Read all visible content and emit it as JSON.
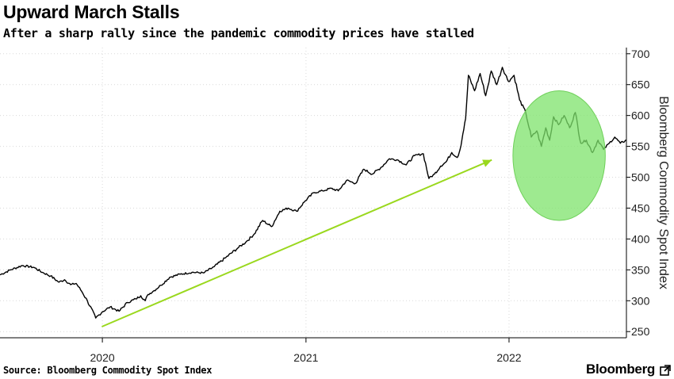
{
  "header": {
    "title": "Upward March Stalls",
    "subtitle": "After a sharp rally since the pandemic commodity prices have stalled"
  },
  "footer": {
    "source": "Source: Bloomberg Commodity Spot Index",
    "brand": "Bloomberg"
  },
  "colors": {
    "line": "#000000",
    "grid": "#d9d9d9",
    "arrow": "#9ad81e",
    "highlight_fill": "#7ee36b",
    "highlight_stroke": "#6fd05a"
  },
  "icons": {
    "brand": "external-link-icon"
  },
  "chart_data": {
    "type": "line",
    "title": "Upward March Stalls",
    "subtitle": "After a sharp rally since the pandemic commodity prices have stalled",
    "xlabel": "",
    "ylabel": "Bloomberg Commodity Spot Index",
    "x_ticks": [
      "2020",
      "2021",
      "2022"
    ],
    "y_ticks": [
      250,
      300,
      350,
      400,
      450,
      500,
      550,
      600,
      650,
      700
    ],
    "ylim": [
      240,
      710
    ],
    "xlim": [
      "2019-07-01",
      "2022-07-31"
    ],
    "grid": "dotted",
    "y_axis_side": "right",
    "series": [
      {
        "x": [
          "2019-07-01",
          "2019-07-20",
          "2019-08-10",
          "2019-08-31",
          "2019-09-15",
          "2019-09-30",
          "2019-10-15",
          "2019-10-25",
          "2019-11-05",
          "2019-11-15",
          "2019-11-25",
          "2019-12-05",
          "2019-12-20",
          "2020-01-01",
          "2020-01-15",
          "2020-01-31",
          "2020-02-15",
          "2020-03-01",
          "2020-03-10",
          "2020-03-18",
          "2020-03-23",
          "2020-04-01",
          "2020-04-15",
          "2020-05-01",
          "2020-05-20",
          "2020-06-10",
          "2020-07-01",
          "2020-07-20",
          "2020-08-10",
          "2020-08-31",
          "2020-09-15",
          "2020-09-30",
          "2020-10-15",
          "2020-10-31",
          "2020-11-15",
          "2020-11-30",
          "2020-12-15",
          "2020-12-31",
          "2021-01-15",
          "2021-01-31",
          "2021-02-15",
          "2021-02-28",
          "2021-03-15",
          "2021-03-31",
          "2021-04-15",
          "2021-04-30",
          "2021-05-15",
          "2021-05-31",
          "2021-06-15",
          "2021-06-30",
          "2021-07-15",
          "2021-07-31",
          "2021-08-10",
          "2021-08-20",
          "2021-08-31",
          "2021-09-10",
          "2021-09-20",
          "2021-09-30",
          "2021-10-05",
          "2021-10-10",
          "2021-10-15",
          "2021-10-20",
          "2021-10-31",
          "2021-11-10",
          "2021-11-20",
          "2021-11-30",
          "2021-12-10",
          "2021-12-20",
          "2021-12-31",
          "2022-01-10",
          "2022-01-20",
          "2022-01-31",
          "2022-02-10",
          "2022-02-20",
          "2022-02-28",
          "2022-03-08",
          "2022-03-15",
          "2022-03-22",
          "2022-03-31",
          "2022-04-10",
          "2022-04-20",
          "2022-04-30",
          "2022-05-10",
          "2022-05-20",
          "2022-05-31",
          "2022-06-10",
          "2022-06-20",
          "2022-06-30",
          "2022-07-10",
          "2022-07-20",
          "2022-07-31"
        ],
        "values": [
          342,
          350,
          357,
          354,
          346,
          340,
          330,
          334,
          326,
          328,
          315,
          300,
          272,
          282,
          290,
          283,
          297,
          303,
          308,
          300,
          310,
          315,
          325,
          338,
          343,
          346,
          345,
          355,
          370,
          385,
          395,
          408,
          430,
          420,
          445,
          450,
          445,
          462,
          475,
          478,
          482,
          478,
          495,
          490,
          513,
          505,
          515,
          530,
          528,
          520,
          535,
          538,
          498,
          505,
          518,
          525,
          540,
          532,
          545,
          570,
          595,
          665,
          640,
          668,
          632,
          672,
          650,
          678,
          655,
          665,
          625,
          605,
          565,
          575,
          550,
          580,
          560,
          598,
          585,
          600,
          580,
          605,
          555,
          560,
          540,
          560,
          545,
          555,
          565,
          555,
          560
        ]
      }
    ],
    "annotations": [
      {
        "type": "arrow",
        "from": [
          "2019-12-31",
          258
        ],
        "to": [
          "2021-12-01",
          528
        ]
      },
      {
        "type": "highlight-circle",
        "center": [
          "2022-04-01",
          535
        ],
        "radius_x_days": 83,
        "radius_y_value": 105
      }
    ]
  }
}
